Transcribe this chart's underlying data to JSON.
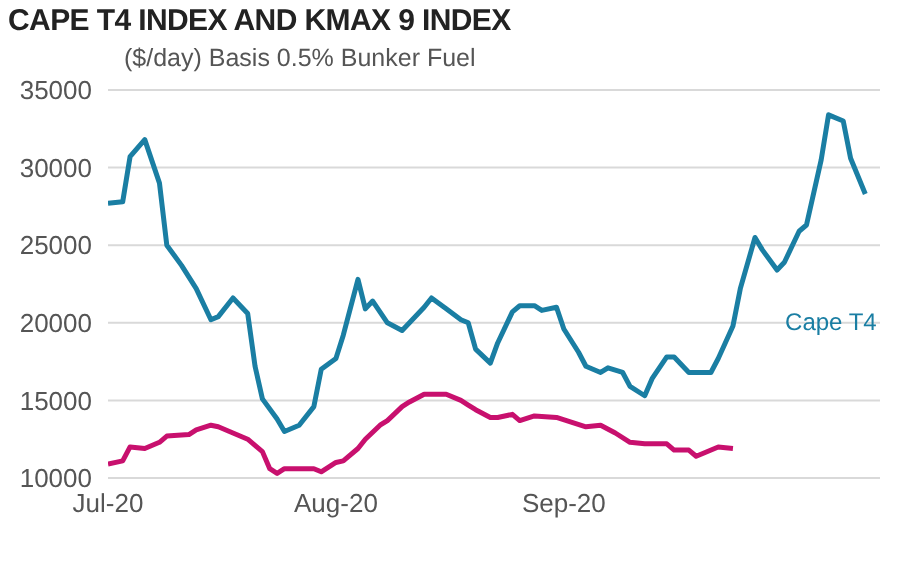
{
  "chart_data": {
    "type": "line",
    "title": "CAPE T4 INDEX AND KMAX 9 INDEX",
    "subtitle": "($/day) Basis 0.5% Bunker Fuel",
    "xlim": [
      "2020-07-01",
      "2020-10-14"
    ],
    "xticks": [
      {
        "value": "2020-07-01",
        "label": "Jul-20"
      },
      {
        "value": "2020-08-01",
        "label": "Aug-20"
      },
      {
        "value": "2020-09-01",
        "label": "Sep-20"
      }
    ],
    "ylim": [
      10000,
      35000
    ],
    "yticks": [
      10000,
      15000,
      20000,
      25000,
      30000,
      35000
    ],
    "grid": "y",
    "marker": "none",
    "line_style": "solid",
    "series": [
      {
        "name": "Cape T4",
        "color": "#1a7ea3",
        "x": [
          "2020-07-01",
          "2020-07-03",
          "2020-07-04",
          "2020-07-06",
          "2020-07-08",
          "2020-07-09",
          "2020-07-11",
          "2020-07-13",
          "2020-07-15",
          "2020-07-16",
          "2020-07-18",
          "2020-07-20",
          "2020-07-21",
          "2020-07-22",
          "2020-07-24",
          "2020-07-25",
          "2020-07-27",
          "2020-07-29",
          "2020-07-30",
          "2020-08-01",
          "2020-08-02",
          "2020-08-04",
          "2020-08-05",
          "2020-08-06",
          "2020-08-08",
          "2020-08-10",
          "2020-08-11",
          "2020-08-13",
          "2020-08-14",
          "2020-08-16",
          "2020-08-18",
          "2020-08-19",
          "2020-08-20",
          "2020-08-22",
          "2020-08-23",
          "2020-08-25",
          "2020-08-26",
          "2020-08-28",
          "2020-08-29",
          "2020-08-31",
          "2020-09-01",
          "2020-09-03",
          "2020-09-04",
          "2020-09-06",
          "2020-09-07",
          "2020-09-09",
          "2020-09-10",
          "2020-09-12",
          "2020-09-13",
          "2020-09-15",
          "2020-09-16",
          "2020-09-18",
          "2020-09-19",
          "2020-09-21",
          "2020-09-22",
          "2020-09-24",
          "2020-09-25",
          "2020-09-27",
          "2020-09-28",
          "2020-09-30",
          "2020-10-01",
          "2020-10-03",
          "2020-10-04",
          "2020-10-06",
          "2020-10-07",
          "2020-10-09",
          "2020-10-10",
          "2020-10-12"
        ],
        "values": [
          27700,
          27800,
          30700,
          31800,
          29000,
          25000,
          23700,
          22200,
          20200,
          20400,
          21600,
          20600,
          17200,
          15100,
          13800,
          13000,
          13400,
          14600,
          17000,
          17700,
          19200,
          22800,
          20900,
          21400,
          20000,
          19500,
          20000,
          21000,
          21600,
          20900,
          20200,
          20000,
          18300,
          17400,
          18700,
          20700,
          21100,
          21100,
          20800,
          21000,
          19600,
          18100,
          17200,
          16800,
          17100,
          16800,
          15900,
          15300,
          16400,
          17800,
          17800,
          16800,
          16800,
          16800,
          17700,
          19800,
          22200,
          25500,
          24700,
          23400,
          23900,
          25900,
          26300,
          30500,
          33400,
          33000,
          30600,
          28300
        ]
      },
      {
        "color": "#c8106e",
        "x": [
          "2020-07-01",
          "2020-07-03",
          "2020-07-04",
          "2020-07-06",
          "2020-07-08",
          "2020-07-09",
          "2020-07-12",
          "2020-07-13",
          "2020-07-15",
          "2020-07-16",
          "2020-07-18",
          "2020-07-20",
          "2020-07-22",
          "2020-07-23",
          "2020-07-24",
          "2020-07-25",
          "2020-07-29",
          "2020-07-30",
          "2020-08-01",
          "2020-08-02",
          "2020-08-04",
          "2020-08-05",
          "2020-08-07",
          "2020-08-08",
          "2020-08-10",
          "2020-08-11",
          "2020-08-13",
          "2020-08-16",
          "2020-08-18",
          "2020-08-19",
          "2020-08-20",
          "2020-08-22",
          "2020-08-23",
          "2020-08-25",
          "2020-08-26",
          "2020-08-28",
          "2020-08-31",
          "2020-09-02",
          "2020-09-04",
          "2020-09-06",
          "2020-09-08",
          "2020-09-10",
          "2020-09-12",
          "2020-09-15",
          "2020-09-16",
          "2020-09-18",
          "2020-09-19",
          "2020-09-22",
          "2020-09-24"
        ],
        "values": [
          10900,
          11100,
          12000,
          11900,
          12300,
          12700,
          12800,
          13100,
          13400,
          13300,
          12900,
          12500,
          11700,
          10600,
          10300,
          10600,
          10600,
          10400,
          11000,
          11100,
          11900,
          12500,
          13400,
          13700,
          14600,
          14900,
          15400,
          15400,
          15000,
          14700,
          14400,
          13900,
          13900,
          14100,
          13700,
          14000,
          13900,
          13600,
          13300,
          13400,
          12900,
          12300,
          12200,
          12200,
          11800,
          11800,
          11400,
          12000,
          11900
        ]
      }
    ]
  }
}
